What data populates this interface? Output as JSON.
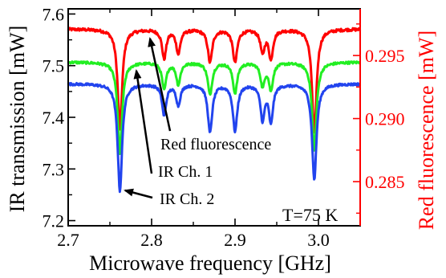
{
  "chart_data": {
    "type": "line",
    "title": "",
    "xlabel": "Microwave frequency [GHz]",
    "ylabel": "IR transmission [mW]",
    "y2label": "Red fluorescence [mW]",
    "xlim": [
      2.7,
      3.05
    ],
    "ylim": [
      7.19,
      7.61
    ],
    "y2lim": [
      0.2815,
      0.2987
    ],
    "x_ticks": [
      "2.7",
      "2.8",
      "2.9",
      "3.0"
    ],
    "x_tick_values": [
      2.7,
      2.8,
      2.9,
      3.0
    ],
    "y_ticks": [
      "7.2",
      "7.3",
      "7.4",
      "7.5",
      "7.6"
    ],
    "y_tick_values": [
      7.2,
      7.3,
      7.4,
      7.5,
      7.6
    ],
    "y2_ticks": [
      "0.285",
      "0.290",
      "0.295"
    ],
    "y2_tick_values": [
      0.285,
      0.29,
      0.295
    ],
    "left_axis_color": "#000000",
    "right_axis_color": "#ff0000",
    "grid": false,
    "series": [
      {
        "name": "Red fluorescence",
        "axis": "right",
        "color": "#ff0000",
        "baseline": 0.2971,
        "dips": [
          {
            "x": 2.762,
            "value": 0.2892,
            "width": 0.0032
          },
          {
            "x": 2.815,
            "value": 0.2948,
            "width": 0.003
          },
          {
            "x": 2.832,
            "value": 0.2952,
            "width": 0.003
          },
          {
            "x": 2.87,
            "value": 0.2945,
            "width": 0.0032
          },
          {
            "x": 2.9,
            "value": 0.2945,
            "width": 0.0032
          },
          {
            "x": 2.933,
            "value": 0.2953,
            "width": 0.003
          },
          {
            "x": 2.943,
            "value": 0.2948,
            "width": 0.003
          },
          {
            "x": 2.995,
            "value": 0.2888,
            "width": 0.0032
          }
        ]
      },
      {
        "name": "IR Ch. 1",
        "axis": "left",
        "color": "#22ee22",
        "baseline": 7.507,
        "dips": [
          {
            "x": 2.762,
            "value": 7.33,
            "width": 0.0032
          },
          {
            "x": 2.815,
            "value": 7.455,
            "width": 0.003
          },
          {
            "x": 2.832,
            "value": 7.465,
            "width": 0.003
          },
          {
            "x": 2.87,
            "value": 7.445,
            "width": 0.0032
          },
          {
            "x": 2.9,
            "value": 7.448,
            "width": 0.0032
          },
          {
            "x": 2.933,
            "value": 7.462,
            "width": 0.003
          },
          {
            "x": 2.943,
            "value": 7.455,
            "width": 0.003
          },
          {
            "x": 2.995,
            "value": 7.335,
            "width": 0.0032
          }
        ]
      },
      {
        "name": "IR Ch. 2",
        "axis": "left",
        "color": "#2244ee",
        "baseline": 7.465,
        "dips": [
          {
            "x": 2.762,
            "value": 7.258,
            "width": 0.0032
          },
          {
            "x": 2.815,
            "value": 7.405,
            "width": 0.003
          },
          {
            "x": 2.832,
            "value": 7.425,
            "width": 0.003
          },
          {
            "x": 2.87,
            "value": 7.372,
            "width": 0.0032
          },
          {
            "x": 2.9,
            "value": 7.375,
            "width": 0.0032
          },
          {
            "x": 2.933,
            "value": 7.398,
            "width": 0.003
          },
          {
            "x": 2.943,
            "value": 7.393,
            "width": 0.003
          },
          {
            "x": 2.995,
            "value": 7.28,
            "width": 0.0032
          }
        ]
      }
    ],
    "annotations": [
      {
        "text": "Red fluorescence",
        "series": "Red fluorescence"
      },
      {
        "text": "IR Ch. 1",
        "series": "IR Ch. 1"
      },
      {
        "text": "IR Ch. 2",
        "series": "IR Ch. 2"
      }
    ],
    "temperature_label": "T=75 K"
  }
}
